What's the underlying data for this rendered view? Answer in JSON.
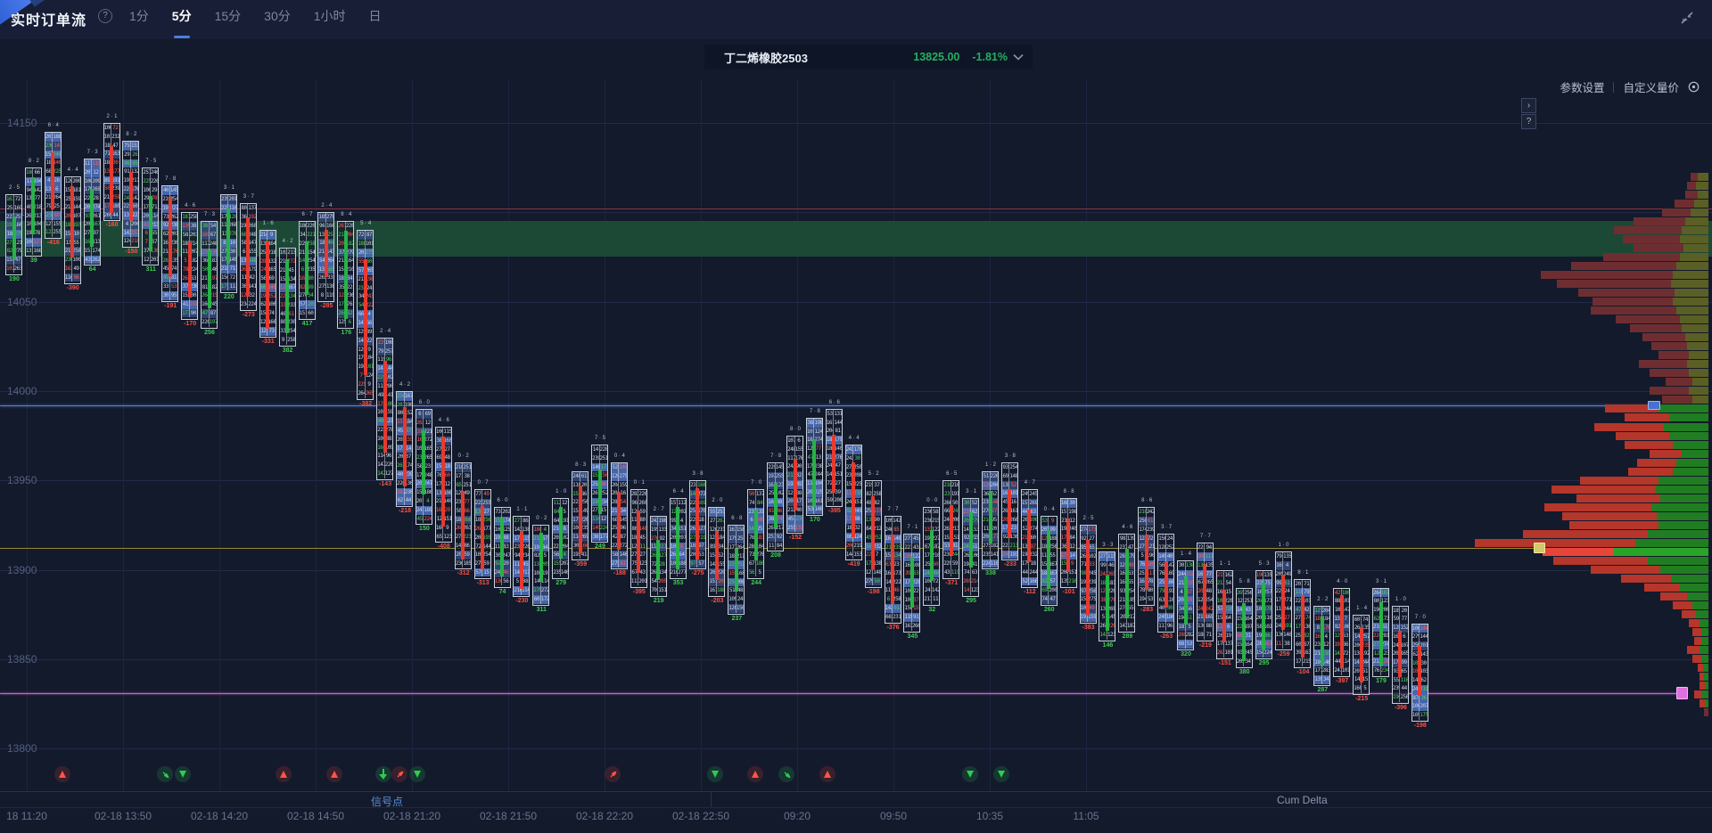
{
  "topbar": {
    "title": "实时订单流",
    "help": "?",
    "tabs": [
      {
        "label": "1分",
        "active": false
      },
      {
        "label": "5分",
        "active": true
      },
      {
        "label": "15分",
        "active": false
      },
      {
        "label": "30分",
        "active": false
      },
      {
        "label": "1小时",
        "active": false
      },
      {
        "label": "日",
        "active": false
      }
    ]
  },
  "selector": {
    "name": "丁二烯橡胶2503",
    "price": "13825.00",
    "change": "-1.81%",
    "price_color": "#27ae60"
  },
  "toolbar": {
    "settings_label": "参数设置",
    "custom_label": "自定义量价"
  },
  "side_panel": {
    "expand": "›",
    "help": "?"
  },
  "colors": {
    "up": "#27b347",
    "down": "#e8392f",
    "band": "#1c4936",
    "resistance_line": "#8a3340",
    "blue_line": "#5b7fd6",
    "poc_line": "#9a8a30",
    "current_line": "#d957d9",
    "profile_red_muted": "#6e2e31",
    "profile_green_muted": "#5a5f25",
    "profile_red": "#b5362a",
    "profile_green": "#217d21",
    "poc_red": "#e8453a",
    "poc_green": "#2aa32a"
  },
  "chart_data": {
    "type": "footprint-orderflow",
    "ylabel": "price",
    "y_axis": [
      14150,
      14100,
      14050,
      14000,
      13950,
      13900,
      13850,
      13800
    ],
    "ylim": [
      13790,
      14165
    ],
    "x_axis": [
      "18 11:20",
      "02-18 13:50",
      "02-18 14:20",
      "02-18 14:50",
      "02-18 21:20",
      "02-18 21:50",
      "02-18 22:20",
      "02-18 22:50",
      "09:20",
      "09:50",
      "10:35",
      "11:05"
    ],
    "grid": true,
    "levels": {
      "resistance_price": 14102,
      "supply_band": {
        "from": 14075,
        "to": 14095
      },
      "blue_level_price": 13992,
      "poc_price": 13912,
      "current_price": 13831
    },
    "candles": [
      [
        0,
        14110,
        14065,
        "u"
      ],
      [
        1,
        14125,
        14075,
        "u"
      ],
      [
        2,
        14145,
        14085,
        "d"
      ],
      [
        3,
        14120,
        14060,
        "d"
      ],
      [
        4,
        14130,
        14070,
        "u"
      ],
      [
        5,
        14150,
        14095,
        "d"
      ],
      [
        6,
        14140,
        14080,
        "d"
      ],
      [
        7,
        14125,
        14070,
        "u"
      ],
      [
        8,
        14115,
        14050,
        "d"
      ],
      [
        9,
        14100,
        14040,
        "d"
      ],
      [
        10,
        14095,
        14035,
        "u"
      ],
      [
        11,
        14110,
        14055,
        "u"
      ],
      [
        12,
        14105,
        14045,
        "d"
      ],
      [
        13,
        14090,
        14030,
        "d"
      ],
      [
        14,
        14080,
        14025,
        "u"
      ],
      [
        15,
        14095,
        14040,
        "u"
      ],
      [
        16,
        14100,
        14050,
        "d"
      ],
      [
        17,
        14095,
        14035,
        "u"
      ],
      [
        18,
        14090,
        13995,
        "d"
      ],
      [
        19,
        14030,
        13950,
        "d"
      ],
      [
        20,
        14000,
        13935,
        "d"
      ],
      [
        21,
        13990,
        13925,
        "u"
      ],
      [
        22,
        13980,
        13915,
        "d"
      ],
      [
        23,
        13960,
        13900,
        "d"
      ],
      [
        24,
        13945,
        13895,
        "d"
      ],
      [
        25,
        13935,
        13890,
        "u"
      ],
      [
        26,
        13930,
        13885,
        "d"
      ],
      [
        27,
        13925,
        13880,
        "u"
      ],
      [
        28,
        13940,
        13895,
        "u"
      ],
      [
        29,
        13955,
        13905,
        "d"
      ],
      [
        30,
        13970,
        13915,
        "u"
      ],
      [
        31,
        13960,
        13900,
        "d"
      ],
      [
        32,
        13945,
        13890,
        "d"
      ],
      [
        33,
        13930,
        13885,
        "u"
      ],
      [
        34,
        13940,
        13895,
        "u"
      ],
      [
        35,
        13950,
        13900,
        "d"
      ],
      [
        36,
        13935,
        13885,
        "d"
      ],
      [
        37,
        13925,
        13875,
        "u"
      ],
      [
        38,
        13945,
        13895,
        "u"
      ],
      [
        39,
        13960,
        13910,
        "u"
      ],
      [
        40,
        13975,
        13920,
        "d"
      ],
      [
        41,
        13985,
        13930,
        "u"
      ],
      [
        42,
        13990,
        13935,
        "d"
      ],
      [
        43,
        13970,
        13905,
        "d"
      ],
      [
        44,
        13950,
        13890,
        "d"
      ],
      [
        45,
        13930,
        13870,
        "d"
      ],
      [
        46,
        13920,
        13865,
        "u"
      ],
      [
        47,
        13935,
        13880,
        "u"
      ],
      [
        48,
        13950,
        13895,
        "d"
      ],
      [
        49,
        13940,
        13885,
        "u"
      ],
      [
        50,
        13955,
        13900,
        "u"
      ],
      [
        51,
        13960,
        13905,
        "d"
      ],
      [
        52,
        13945,
        13890,
        "d"
      ],
      [
        53,
        13930,
        13880,
        "u"
      ],
      [
        54,
        13940,
        13890,
        "d"
      ],
      [
        55,
        13925,
        13870,
        "d"
      ],
      [
        56,
        13910,
        13860,
        "u"
      ],
      [
        57,
        13920,
        13865,
        "u"
      ],
      [
        58,
        13935,
        13880,
        "d"
      ],
      [
        59,
        13920,
        13865,
        "d"
      ],
      [
        60,
        13905,
        13855,
        "u"
      ],
      [
        61,
        13915,
        13860,
        "d"
      ],
      [
        62,
        13900,
        13850,
        "d"
      ],
      [
        63,
        13890,
        13845,
        "u"
      ],
      [
        64,
        13900,
        13850,
        "u"
      ],
      [
        65,
        13910,
        13855,
        "d"
      ],
      [
        66,
        13895,
        13845,
        "d"
      ],
      [
        67,
        13880,
        13835,
        "u"
      ],
      [
        68,
        13890,
        13840,
        "d"
      ],
      [
        69,
        13875,
        13830,
        "d"
      ],
      [
        70,
        13890,
        13840,
        "u"
      ],
      [
        71,
        13880,
        13825,
        "d"
      ],
      [
        72,
        13870,
        13815,
        "d"
      ]
    ],
    "volume_profile": {
      "top_price": 14120,
      "row_points": 5,
      "rows": [
        [
          8,
          12,
          0,
          ""
        ],
        [
          10,
          14,
          0,
          ""
        ],
        [
          14,
          12,
          0,
          ""
        ],
        [
          22,
          16,
          0,
          ""
        ],
        [
          32,
          20,
          0,
          ""
        ],
        [
          58,
          26,
          0,
          ""
        ],
        [
          76,
          30,
          0,
          ""
        ],
        [
          64,
          32,
          0,
          ""
        ],
        [
          56,
          28,
          0,
          ""
        ],
        [
          86,
          32,
          0,
          ""
        ],
        [
          118,
          36,
          0,
          ""
        ],
        [
          148,
          40,
          0,
          ""
        ],
        [
          128,
          42,
          0,
          ""
        ],
        [
          108,
          38,
          0,
          ""
        ],
        [
          90,
          40,
          0,
          ""
        ],
        [
          96,
          36,
          0,
          ""
        ],
        [
          72,
          32,
          0,
          ""
        ],
        [
          58,
          30,
          0,
          ""
        ],
        [
          48,
          26,
          0,
          ""
        ],
        [
          40,
          24,
          0,
          ""
        ],
        [
          34,
          22,
          0,
          ""
        ],
        [
          54,
          24,
          0,
          ""
        ],
        [
          44,
          22,
          0,
          ""
        ],
        [
          30,
          18,
          0,
          ""
        ],
        [
          44,
          22,
          0,
          ""
        ],
        [
          34,
          18,
          0,
          ""
        ],
        [
          60,
          56,
          1,
          "blue"
        ],
        [
          50,
          44,
          1,
          ""
        ],
        [
          78,
          50,
          1,
          ""
        ],
        [
          60,
          44,
          1,
          ""
        ],
        [
          54,
          40,
          1,
          ""
        ],
        [
          36,
          30,
          1,
          ""
        ],
        [
          44,
          36,
          1,
          ""
        ],
        [
          50,
          40,
          1,
          ""
        ],
        [
          88,
          56,
          1,
          ""
        ],
        [
          116,
          60,
          1,
          ""
        ],
        [
          94,
          54,
          1,
          ""
        ],
        [
          120,
          64,
          1,
          ""
        ],
        [
          106,
          58,
          1,
          ""
        ],
        [
          100,
          56,
          1,
          ""
        ],
        [
          140,
          68,
          1,
          ""
        ],
        [
          180,
          82,
          1,
          ""
        ],
        [
          80,
          106,
          1,
          "poc"
        ],
        [
          106,
          68,
          1,
          ""
        ],
        [
          78,
          54,
          1,
          ""
        ],
        [
          56,
          42,
          1,
          ""
        ],
        [
          40,
          32,
          1,
          ""
        ],
        [
          30,
          24,
          1,
          ""
        ],
        [
          22,
          18,
          1,
          ""
        ],
        [
          16,
          14,
          1,
          ""
        ],
        [
          12,
          10,
          1,
          ""
        ],
        [
          10,
          8,
          1,
          ""
        ],
        [
          8,
          8,
          1,
          ""
        ],
        [
          14,
          10,
          1,
          ""
        ],
        [
          10,
          8,
          1,
          ""
        ],
        [
          6,
          6,
          1,
          ""
        ],
        [
          5,
          5,
          1,
          ""
        ],
        [
          6,
          4,
          1,
          ""
        ],
        [
          9,
          7,
          1,
          "pink"
        ],
        [
          6,
          4,
          1,
          ""
        ],
        [
          5,
          0,
          0,
          ""
        ]
      ]
    },
    "signals": [
      [
        70,
        "tri-up",
        "r"
      ],
      [
        185,
        "rocket",
        "g"
      ],
      [
        205,
        "tri-down",
        "g"
      ],
      [
        318,
        "tri-up",
        "r"
      ],
      [
        375,
        "tri-up",
        "r"
      ],
      [
        430,
        "arrow-down",
        "g"
      ],
      [
        448,
        "rocket",
        "r"
      ],
      [
        468,
        "tri-down",
        "g"
      ],
      [
        687,
        "rocket",
        "r"
      ],
      [
        802,
        "tri-down",
        "g"
      ],
      [
        847,
        "tri-up",
        "r"
      ],
      [
        882,
        "rocket",
        "g"
      ],
      [
        928,
        "tri-up",
        "r"
      ],
      [
        1088,
        "tri-down",
        "g"
      ],
      [
        1123,
        "tri-down",
        "g"
      ]
    ],
    "footer": {
      "signal_label": "信号点",
      "cum_delta_label": "Cum Delta"
    }
  }
}
